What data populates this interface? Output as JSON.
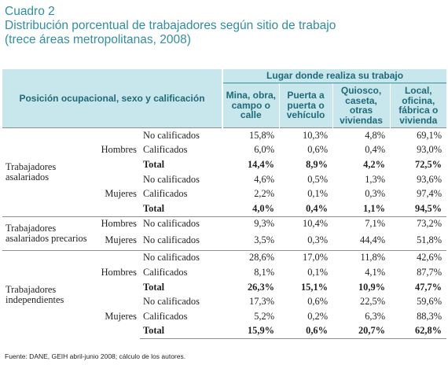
{
  "title": {
    "line1": "Cuadro 2",
    "line2": "Distribución porcentual de trabajadores según sitio de trabajo",
    "line3": "(trece áreas metropolitanas, 2008)"
  },
  "header": {
    "row_header": "Posición ocupacional, sexo y calificación",
    "group_header": "Lugar donde realiza su trabajo",
    "columns": [
      "Mina, obra, campo o calle",
      "Puerta a puerta o vehículo",
      "Quiosco, caseta, otras viviendas",
      "Local, oficina, fábrica o vivienda"
    ]
  },
  "sections": [
    {
      "label": "Trabajadores asalariados",
      "groups": [
        {
          "sex": "Hombres",
          "rows": [
            {
              "label": "No calificados",
              "values": [
                "15,8%",
                "10,3%",
                "4,8%",
                "69,1%"
              ]
            },
            {
              "label": "Calificados",
              "values": [
                "6,0%",
                "0,6%",
                "0,4%",
                "93,0%"
              ]
            },
            {
              "label": "Total",
              "values": [
                "14,4%",
                "8,9%",
                "4,2%",
                "72,5%"
              ]
            }
          ]
        },
        {
          "sex": "Mujeres",
          "rows": [
            {
              "label": "No calificados",
              "values": [
                "4,6%",
                "0,5%",
                "1,3%",
                "93,6%"
              ]
            },
            {
              "label": "Calificados",
              "values": [
                "2,2%",
                "0,1%",
                "0,3%",
                "97,4%"
              ]
            },
            {
              "label": "Total",
              "values": [
                "4,0%",
                "0,4%",
                "1,1%",
                "94,5%"
              ]
            }
          ]
        }
      ]
    },
    {
      "label": "Trabajadores asalariados precarios",
      "groups": [
        {
          "sex": "Hombres",
          "rows": [
            {
              "label": "No calificados",
              "values": [
                "9,3%",
                "10,4%",
                "7,1%",
                "73,2%"
              ]
            }
          ]
        },
        {
          "sex": "Mujeres",
          "rows": [
            {
              "label": "No calificados",
              "values": [
                "3,5%",
                "0,3%",
                "44,4%",
                "51,8%"
              ]
            }
          ]
        }
      ]
    },
    {
      "label": "Trabajadores independientes",
      "groups": [
        {
          "sex": "Hombres",
          "rows": [
            {
              "label": "No calificados",
              "values": [
                "28,6%",
                "17,0%",
                "11,8%",
                "42,6%"
              ]
            },
            {
              "label": "Calificados",
              "values": [
                "8,1%",
                "0,1%",
                "4,1%",
                "87,7%"
              ]
            },
            {
              "label": "Total",
              "values": [
                "26,3%",
                "15,1%",
                "10,9%",
                "47,7%"
              ]
            }
          ]
        },
        {
          "sex": "Mujeres",
          "rows": [
            {
              "label": "No calificados",
              "values": [
                "17,3%",
                "0,6%",
                "22,5%",
                "59,6%"
              ]
            },
            {
              "label": "Calificados",
              "values": [
                "5,2%",
                "0,2%",
                "6,3%",
                "88,3%"
              ]
            },
            {
              "label": "Total",
              "values": [
                "15,9%",
                "0,6%",
                "20,7%",
                "62,8%"
              ]
            }
          ]
        }
      ]
    }
  ],
  "source": "Fuente: DANE, GEIH abril-junio 2008; cálculo de los autores."
}
